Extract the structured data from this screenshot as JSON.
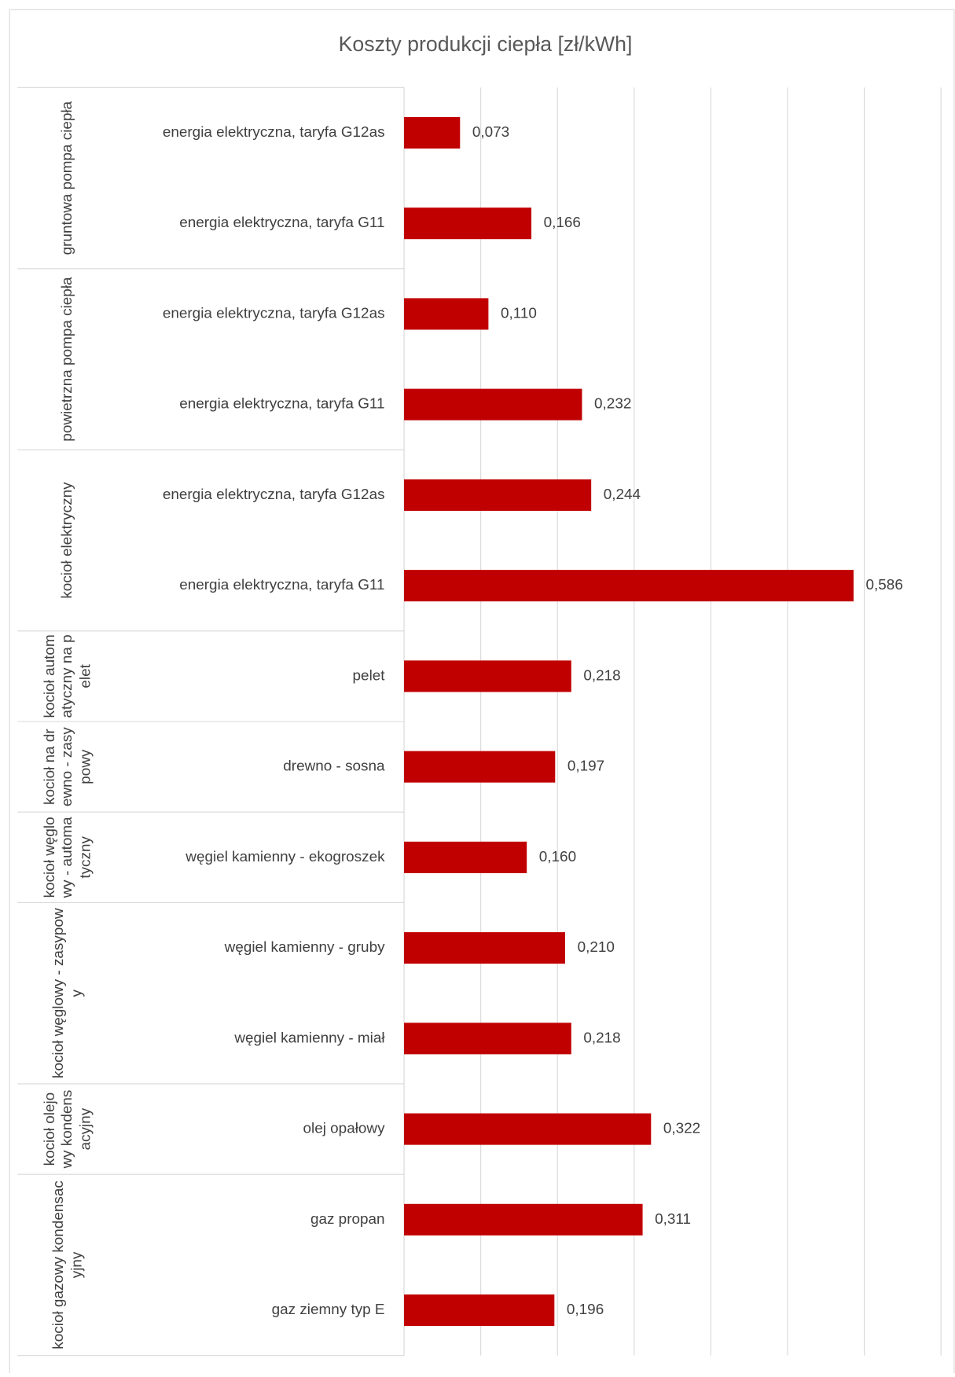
{
  "chart_data": {
    "type": "bar",
    "title": "Koszty produkcji ciepła [zł/kWh]",
    "color": "#c00000",
    "xlim": [
      0,
      0.7
    ],
    "xticks": [
      0,
      0.1,
      0.2,
      0.3,
      0.4,
      0.5,
      0.6,
      0.7
    ],
    "grid": true,
    "groups": [
      {
        "name": "gruntowa pompa ciepła",
        "categories": [
          "energia elektryczna, taryfa G12as",
          "energia elektryczna, taryfa G11"
        ],
        "values": [
          0.073,
          0.166
        ],
        "value_labels": [
          "0,073",
          "0,166"
        ]
      },
      {
        "name": "powietrzna pompa ciepła",
        "categories": [
          "energia elektryczna, taryfa G12as",
          "energia elektryczna, taryfa G11"
        ],
        "values": [
          0.11,
          0.232
        ],
        "value_labels": [
          "0,110",
          "0,232"
        ]
      },
      {
        "name": "kocioł elektryczny",
        "categories": [
          "energia elektryczna, taryfa G12as",
          "energia elektryczna, taryfa G11"
        ],
        "values": [
          0.244,
          0.586
        ],
        "value_labels": [
          "0,244",
          "0,586"
        ]
      },
      {
        "name": "kocioł automatyczny na pelet",
        "categories": [
          "pelet"
        ],
        "values": [
          0.218
        ],
        "value_labels": [
          "0,218"
        ]
      },
      {
        "name": "kocioł na drewno - zasypowy",
        "categories": [
          "drewno - sosna"
        ],
        "values": [
          0.197
        ],
        "value_labels": [
          "0,197"
        ]
      },
      {
        "name": "kocioł węglowy - automatyczny",
        "categories": [
          "węgiel kamienny - ekogroszek"
        ],
        "values": [
          0.16
        ],
        "value_labels": [
          "0,160"
        ]
      },
      {
        "name": "kocioł węglowy - zasypowy",
        "categories": [
          "węgiel kamienny - gruby",
          "węgiel kamienny - miał"
        ],
        "values": [
          0.21,
          0.218
        ],
        "value_labels": [
          "0,210",
          "0,218"
        ]
      },
      {
        "name": "kocioł olejowy kondensacyjny",
        "categories": [
          "olej opałowy"
        ],
        "values": [
          0.322
        ],
        "value_labels": [
          "0,322"
        ]
      },
      {
        "name": "kocioł gazowy kondensacyjny",
        "categories": [
          "gaz propan",
          "gaz ziemny typ E"
        ],
        "values": [
          0.311,
          0.196
        ],
        "value_labels": [
          "0,311",
          "0,196"
        ]
      }
    ]
  }
}
